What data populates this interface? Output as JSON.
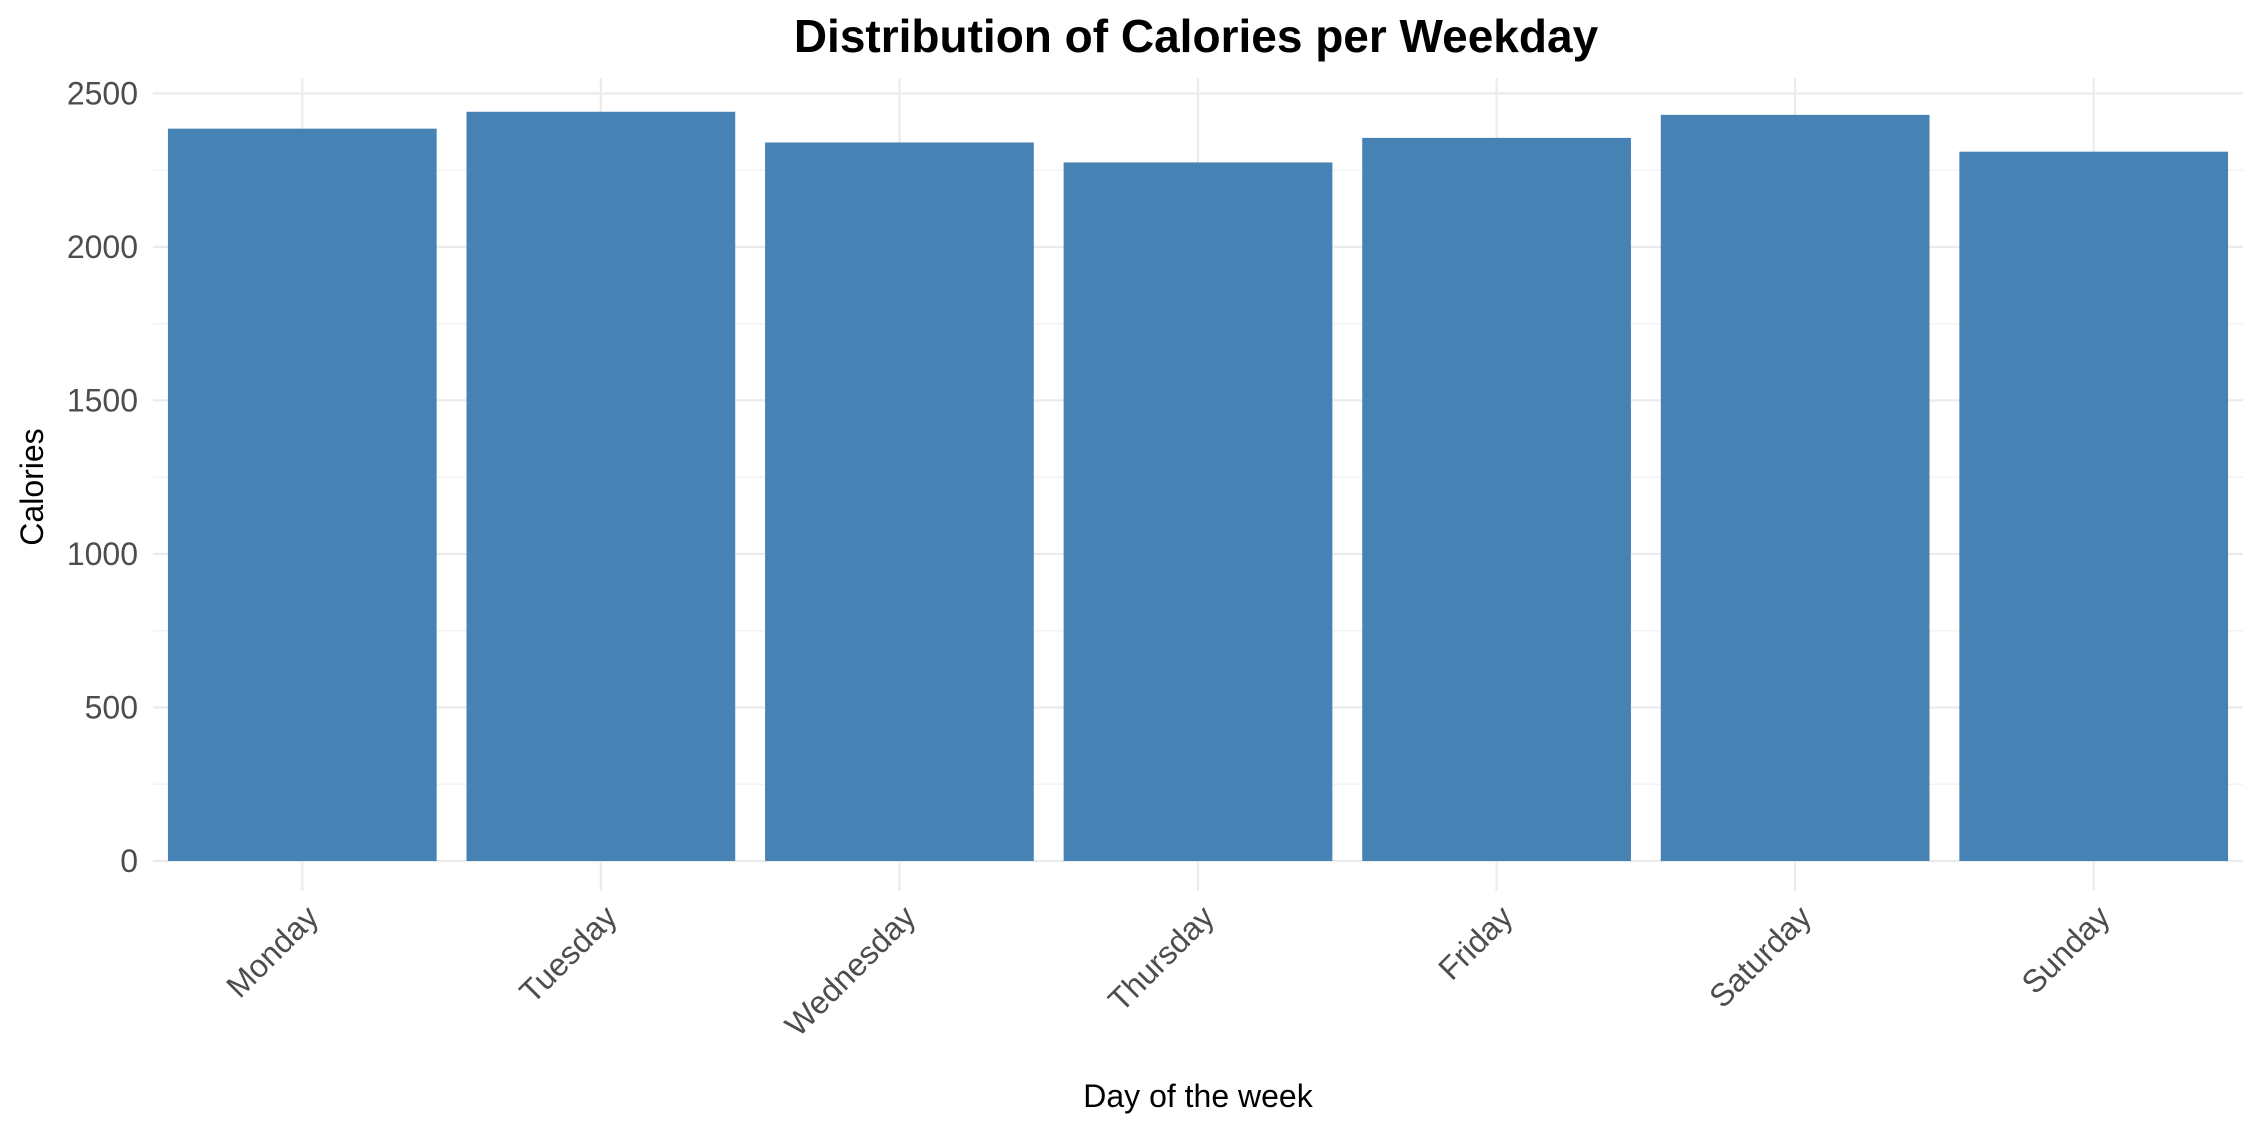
{
  "chart_data": {
    "type": "bar",
    "title": "Distribution of Calories per Weekday",
    "xlabel": "Day of the week",
    "ylabel": "Calories",
    "categories": [
      "Monday",
      "Tuesday",
      "Wednesday",
      "Thursday",
      "Friday",
      "Saturday",
      "Sunday"
    ],
    "values": [
      2385,
      2440,
      2340,
      2275,
      2355,
      2430,
      2310
    ],
    "ylim": [
      0,
      2550
    ],
    "yticks": [
      "0",
      "500",
      "1000",
      "1500",
      "2000",
      "2500"
    ],
    "bar_color": "#4682b4",
    "grid": true,
    "legend": "none"
  }
}
